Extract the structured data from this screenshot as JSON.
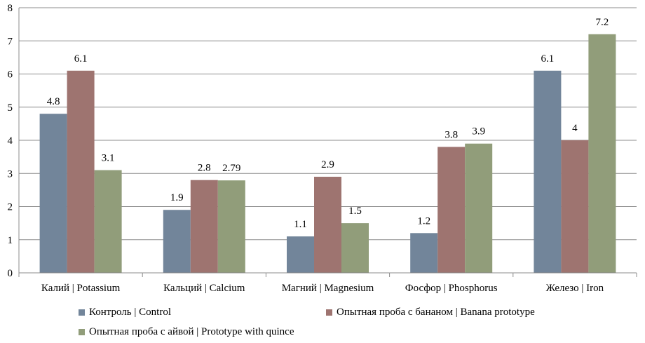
{
  "chart_data": {
    "type": "bar",
    "title": "",
    "xlabel": "",
    "ylabel": "",
    "ylim": [
      0,
      8
    ],
    "yticks": [
      "0",
      "1",
      "2",
      "3",
      "4",
      "5",
      "6",
      "7",
      "8"
    ],
    "grid": true,
    "categories": [
      "Калий | Potassium",
      "Кальций | Calcium",
      "Магний | Magnesium",
      "Фосфор | Phosphorus",
      "Железо | Iron"
    ],
    "series": [
      {
        "name": "Контроль | Control",
        "color": "#72859a",
        "values": [
          4.8,
          1.9,
          1.1,
          1.2,
          6.1
        ],
        "labels": [
          "4.8",
          "1.9",
          "1.1",
          "1.2",
          "6.1"
        ]
      },
      {
        "name": "Опытная проба с бананом | Banana prototype",
        "color": "#9e7470",
        "values": [
          6.1,
          2.8,
          2.9,
          3.8,
          4
        ],
        "labels": [
          "6.1",
          "2.8",
          "2.9",
          "3.8",
          "4"
        ]
      },
      {
        "name": "Опытная проба с айвой | Prototype with quince",
        "color": "#919d7a",
        "values": [
          3.1,
          2.79,
          1.5,
          3.9,
          7.2
        ],
        "labels": [
          "3.1",
          "2.79",
          "1.5",
          "3.9",
          "7.2"
        ]
      }
    ],
    "legend_position": "bottom"
  }
}
